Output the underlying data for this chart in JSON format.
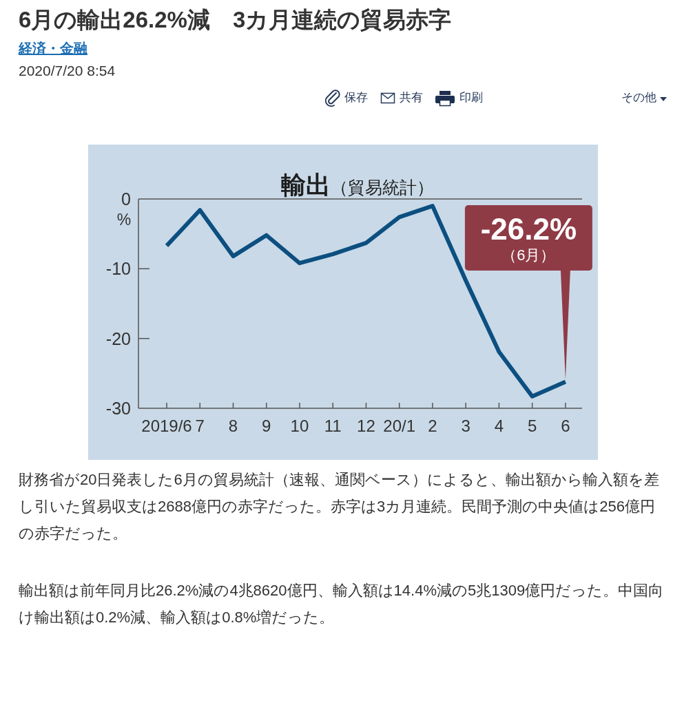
{
  "chart_data": {
    "type": "line",
    "title": "**輸出**（貿易統計）",
    "ylabel": "%",
    "categories": [
      "2019/6",
      "7",
      "8",
      "9",
      "10",
      "11",
      "12",
      "20/1",
      "2",
      "3",
      "4",
      "5",
      "6"
    ],
    "values": [
      -6.7,
      -1.6,
      -8.2,
      -5.2,
      -9.2,
      -7.9,
      -6.3,
      -2.6,
      -1.0,
      -11.7,
      -21.9,
      -28.3,
      -26.2
    ],
    "color": "#0c4f80",
    "ylim": [
      -30,
      0
    ],
    "yticks": [
      0,
      -10,
      -20,
      -30
    ],
    "annotations": [
      "6月の輸出26.2%減　3カ月連続の貿易赤字",
      "経済・金融",
      "2020/7/20 8:54",
      "保存",
      "共有",
      "印刷",
      "その他",
      {
        "text": "-26.2%",
        "x": "6",
        "y": -26.2
      },
      {
        "text": "（6月）",
        "x": "6",
        "y": -26.2
      },
      "財務省が20日発表した6月の貿易統計（速報、通関ベース）によると、輸出額から輸入額を差し引いた貿易収支は2688億円の赤字だった。赤字は3カ月連続。民間予測の中央値は256億円の赤字だった。",
      "輸出額は前年同月比26.2%減の4兆8620億円、輸入額は14.4%減の5兆1309億円だった。中国向け輸出額は0.2%減、輸入額は0.8%増だった。"
    ]
  }
}
